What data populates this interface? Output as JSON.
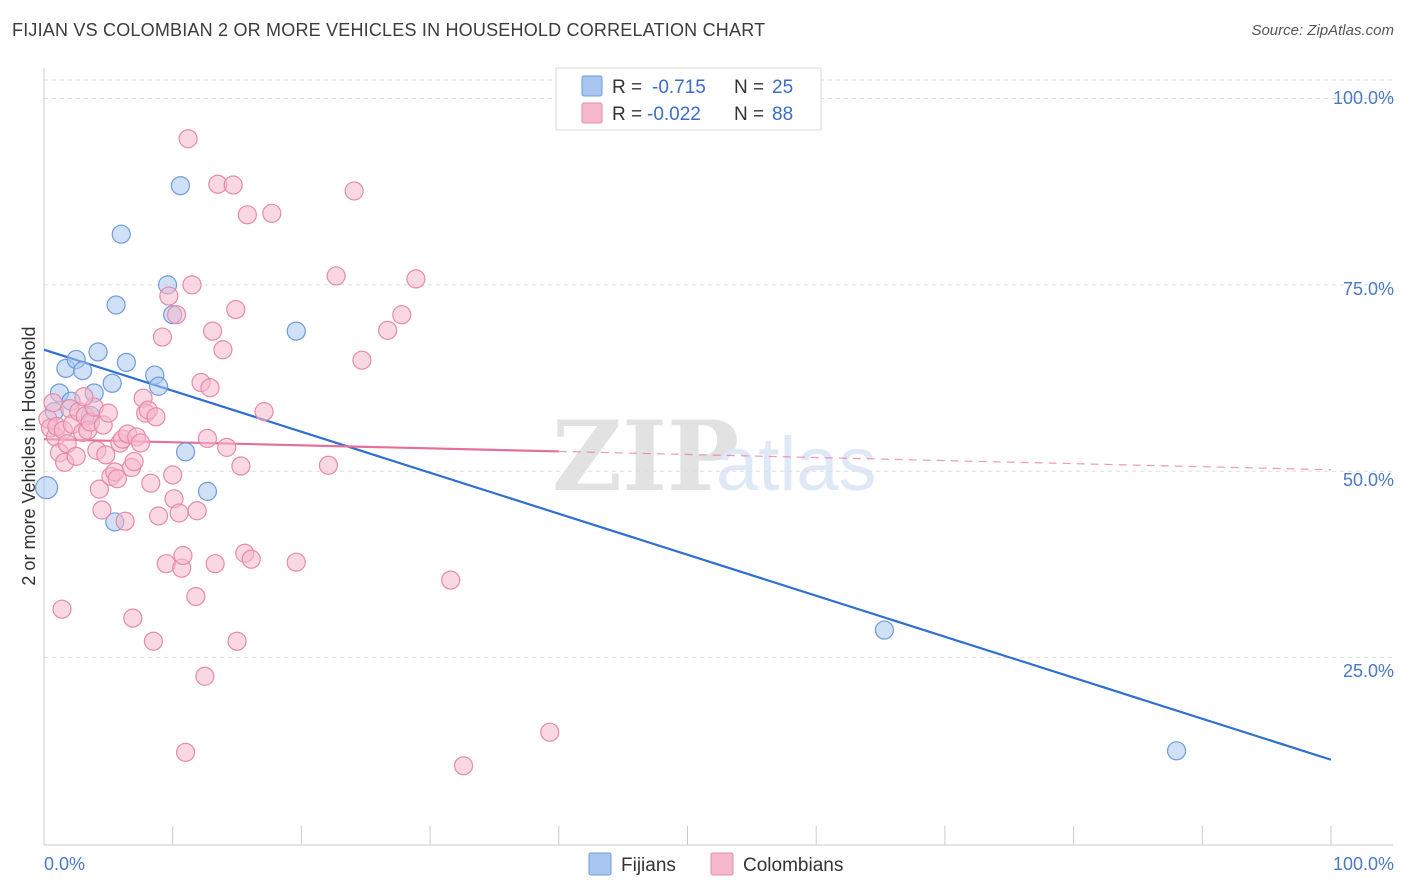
{
  "title": "FIJIAN VS COLOMBIAN 2 OR MORE VEHICLES IN HOUSEHOLD CORRELATION CHART",
  "source": "Source: ZipAtlas.com",
  "watermark": {
    "zip": "ZIP",
    "atlas": "atlas"
  },
  "colors": {
    "fijian_fill": "#a9c6f0",
    "fijian_stroke": "#6f9bd9",
    "fijian_line": "#2f6fd0",
    "colombian_fill": "#f6b8cc",
    "colombian_stroke": "#e68aa8",
    "colombian_line": "#e2709a",
    "grid": "#dddddd",
    "axis": "#cccccc",
    "tick_text": "#4a78c8"
  },
  "legend": {
    "rows": [
      {
        "r_label": "R =",
        "r_value": "-0.715",
        "n_label": "N =",
        "n_value": "25"
      },
      {
        "r_label": "R =",
        "r_value": "-0.022",
        "n_label": "N =",
        "n_value": "88"
      }
    ]
  },
  "bottom_legend": {
    "fijians": "Fijians",
    "colombians": "Colombians"
  },
  "chart_data": {
    "type": "scatter",
    "title": "FIJIAN VS COLOMBIAN 2 OR MORE VEHICLES IN HOUSEHOLD CORRELATION CHART",
    "xlabel": "",
    "ylabel": "2 or more Vehicles in Household",
    "xlim": [
      0,
      100
    ],
    "ylim": [
      0,
      100
    ],
    "x_tick_labels": [
      "0.0%",
      "100.0%"
    ],
    "y_ticks": [
      25,
      50,
      75,
      100
    ],
    "y_tick_labels": [
      "25.0%",
      "50.0%",
      "75.0%",
      "100.0%"
    ],
    "series": [
      {
        "name": "Fijians",
        "r": -0.715,
        "n": 25,
        "trend": {
          "x": [
            0,
            100
          ],
          "y": [
            66.3,
            11.3
          ],
          "dashed_from": null
        },
        "points": [
          [
            0.2,
            47.8
          ],
          [
            0.8,
            58.0
          ],
          [
            1.2,
            60.5
          ],
          [
            1.7,
            63.8
          ],
          [
            2.1,
            59.4
          ],
          [
            2.5,
            65.0
          ],
          [
            3.0,
            63.5
          ],
          [
            3.6,
            57.5
          ],
          [
            3.9,
            60.5
          ],
          [
            4.2,
            66.0
          ],
          [
            5.3,
            61.8
          ],
          [
            5.5,
            43.2
          ],
          [
            5.6,
            72.3
          ],
          [
            6.0,
            81.8
          ],
          [
            6.4,
            64.6
          ],
          [
            8.6,
            62.9
          ],
          [
            8.9,
            61.4
          ],
          [
            9.6,
            75.0
          ],
          [
            10.0,
            71.0
          ],
          [
            10.6,
            88.3
          ],
          [
            11.0,
            52.6
          ],
          [
            12.7,
            47.3
          ],
          [
            19.6,
            68.8
          ],
          [
            65.3,
            28.7
          ],
          [
            88.0,
            12.5
          ]
        ]
      },
      {
        "name": "Colombians",
        "r": -0.022,
        "n": 88,
        "trend": {
          "x": [
            0,
            100
          ],
          "y": [
            54.3,
            50.2
          ],
          "dashed_from": 40
        },
        "points": [
          [
            0.3,
            57.0
          ],
          [
            0.5,
            55.8
          ],
          [
            0.7,
            59.2
          ],
          [
            0.9,
            54.6
          ],
          [
            1.0,
            56.0
          ],
          [
            1.2,
            52.5
          ],
          [
            1.4,
            31.5
          ],
          [
            1.5,
            55.5
          ],
          [
            1.6,
            51.2
          ],
          [
            1.8,
            53.7
          ],
          [
            2.0,
            58.4
          ],
          [
            2.2,
            56.3
          ],
          [
            2.5,
            52.0
          ],
          [
            2.7,
            58.0
          ],
          [
            3.0,
            55.2
          ],
          [
            3.2,
            57.4
          ],
          [
            3.4,
            55.5
          ],
          [
            3.6,
            56.6
          ],
          [
            3.9,
            58.6
          ],
          [
            4.1,
            52.8
          ],
          [
            4.3,
            47.6
          ],
          [
            4.5,
            44.8
          ],
          [
            4.6,
            56.2
          ],
          [
            4.8,
            52.2
          ],
          [
            5.0,
            57.8
          ],
          [
            5.2,
            49.3
          ],
          [
            5.5,
            49.9
          ],
          [
            5.7,
            49.0
          ],
          [
            5.9,
            53.8
          ],
          [
            6.1,
            54.3
          ],
          [
            6.3,
            43.3
          ],
          [
            6.5,
            55.0
          ],
          [
            6.8,
            50.5
          ],
          [
            7.0,
            51.3
          ],
          [
            7.2,
            54.6
          ],
          [
            7.5,
            53.8
          ],
          [
            7.7,
            59.8
          ],
          [
            7.9,
            57.8
          ],
          [
            8.1,
            58.2
          ],
          [
            8.3,
            48.4
          ],
          [
            8.5,
            27.2
          ],
          [
            8.7,
            57.3
          ],
          [
            8.9,
            44.0
          ],
          [
            9.2,
            68.0
          ],
          [
            9.5,
            37.6
          ],
          [
            9.7,
            73.5
          ],
          [
            10.0,
            49.5
          ],
          [
            10.1,
            46.3
          ],
          [
            10.3,
            71.0
          ],
          [
            10.5,
            44.4
          ],
          [
            10.7,
            37.0
          ],
          [
            10.8,
            38.7
          ],
          [
            11.0,
            12.3
          ],
          [
            11.2,
            94.6
          ],
          [
            11.5,
            75.0
          ],
          [
            11.8,
            33.2
          ],
          [
            11.9,
            44.7
          ],
          [
            12.2,
            61.9
          ],
          [
            12.5,
            22.5
          ],
          [
            12.7,
            54.4
          ],
          [
            12.9,
            61.2
          ],
          [
            13.1,
            68.8
          ],
          [
            13.3,
            37.6
          ],
          [
            13.5,
            88.5
          ],
          [
            13.9,
            66.3
          ],
          [
            14.2,
            53.2
          ],
          [
            14.7,
            88.4
          ],
          [
            14.9,
            71.7
          ],
          [
            15.0,
            27.2
          ],
          [
            15.3,
            50.7
          ],
          [
            15.6,
            39.0
          ],
          [
            15.8,
            84.4
          ],
          [
            16.1,
            38.2
          ],
          [
            17.1,
            58.0
          ],
          [
            17.7,
            84.6
          ],
          [
            19.6,
            37.8
          ],
          [
            22.1,
            50.8
          ],
          [
            22.7,
            76.2
          ],
          [
            24.1,
            87.6
          ],
          [
            24.7,
            64.9
          ],
          [
            26.7,
            68.9
          ],
          [
            27.8,
            71.0
          ],
          [
            28.9,
            75.8
          ],
          [
            31.6,
            35.4
          ],
          [
            32.6,
            10.5
          ],
          [
            39.3,
            15.0
          ],
          [
            6.9,
            30.3
          ],
          [
            3.1,
            60.0
          ]
        ]
      }
    ]
  }
}
